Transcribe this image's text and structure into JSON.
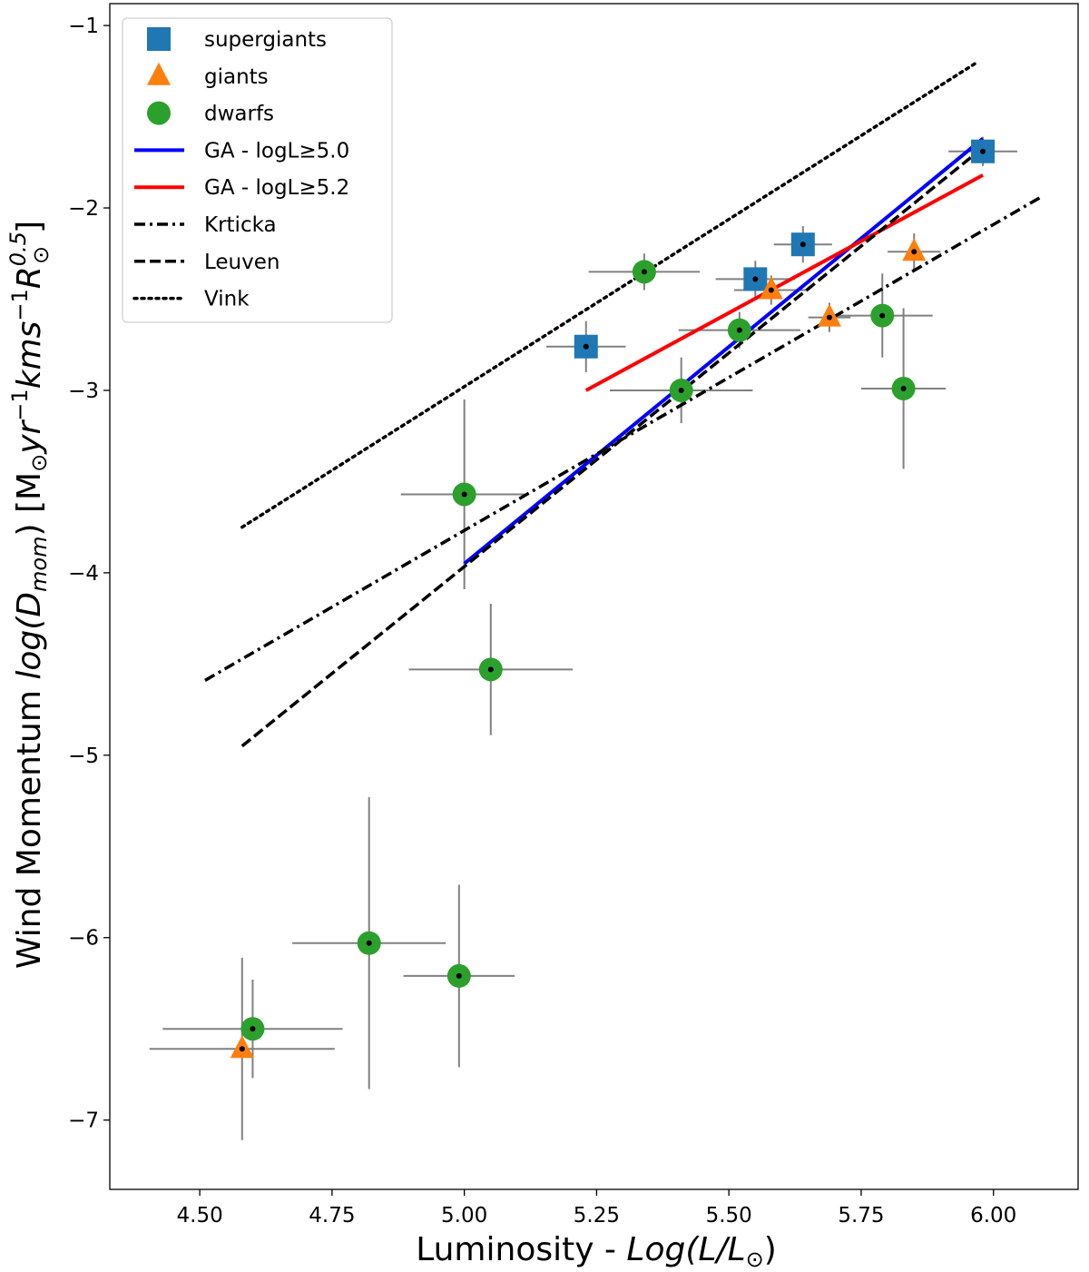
{
  "chart_data": {
    "type": "scatter",
    "xlabel": {
      "prefix": "Luminosity - ",
      "math_main": "Log(L/L",
      "math_sub": "⊙",
      "math_suffix": ")"
    },
    "ylabel": {
      "prefix": "Wind Momentum ",
      "math_main": "log(D",
      "math_sub": "mom",
      "math_close": ")",
      "unit_open": " [M",
      "unit_sun": "⊙",
      "unit_yr": "yr",
      "unit_exp1": "−1",
      "unit_kms": "kms",
      "unit_exp2": "−1",
      "unit_R": "R",
      "unit_R_sup": "0.5",
      "unit_R_sub": "⊙",
      "unit_close": "]"
    },
    "xlim": [
      4.33,
      6.16
    ],
    "ylim": [
      -7.38,
      -0.88
    ],
    "x_ticks": [
      4.5,
      4.75,
      5.0,
      5.25,
      5.5,
      5.75,
      6.0
    ],
    "x_tick_labels": [
      "4.50",
      "4.75",
      "5.00",
      "5.25",
      "5.50",
      "5.75",
      "6.00"
    ],
    "y_ticks": [
      -7,
      -6,
      -5,
      -4,
      -3,
      -2,
      -1
    ],
    "y_tick_labels": [
      "−7",
      "−6",
      "−5",
      "−4",
      "−3",
      "−2",
      "−1"
    ],
    "legend_position": "upper-left",
    "series": [
      {
        "name": "supergiants",
        "kind": "scatter",
        "marker": "square",
        "color": "#1f77b4",
        "points": [
          {
            "x": 5.23,
            "y": -2.76,
            "xerr": 0.075,
            "yerr": 0.14
          },
          {
            "x": 5.55,
            "y": -2.39,
            "xerr": 0.075,
            "yerr": 0.1
          },
          {
            "x": 5.64,
            "y": -2.2,
            "xerr": 0.055,
            "yerr": 0.1
          },
          {
            "x": 5.98,
            "y": -1.69,
            "xerr": 0.065,
            "yerr": 0.08
          }
        ]
      },
      {
        "name": "giants",
        "kind": "scatter",
        "marker": "triangle",
        "color": "#ff7f0e",
        "points": [
          {
            "x": 5.58,
            "y": -2.45,
            "xerr": 0.07,
            "yerr": 0.08
          },
          {
            "x": 5.69,
            "y": -2.6,
            "xerr": 0.04,
            "yerr": 0.08
          },
          {
            "x": 5.85,
            "y": -2.24,
            "xerr": 0.05,
            "yerr": 0.1
          },
          {
            "x": 4.58,
            "y": -6.61,
            "xerr": 0.175,
            "yerr": 0.5
          }
        ]
      },
      {
        "name": "dwarfs",
        "kind": "scatter",
        "marker": "circle",
        "color": "#2ca02c",
        "points": [
          {
            "x": 5.34,
            "y": -2.35,
            "xerr": 0.105,
            "yerr": 0.1
          },
          {
            "x": 5.52,
            "y": -2.67,
            "xerr": 0.115,
            "yerr": 0.1
          },
          {
            "x": 5.41,
            "y": -3.0,
            "xerr": 0.135,
            "yerr": 0.18
          },
          {
            "x": 5.79,
            "y": -2.59,
            "xerr": 0.095,
            "yerr": 0.23
          },
          {
            "x": 5.83,
            "y": -2.99,
            "xerr": 0.08,
            "yerr": 0.44
          },
          {
            "x": 5.0,
            "y": -3.57,
            "xerr": 0.12,
            "yerr": 0.52
          },
          {
            "x": 5.05,
            "y": -4.53,
            "xerr": 0.155,
            "yerr": 0.36
          },
          {
            "x": 4.82,
            "y": -6.03,
            "xerr": 0.145,
            "yerr": 0.8
          },
          {
            "x": 4.99,
            "y": -6.21,
            "xerr": 0.105,
            "yerr": 0.5
          },
          {
            "x": 4.6,
            "y": -6.5,
            "xerr": 0.17,
            "yerr": 0.27
          }
        ]
      },
      {
        "name": "GA - logL≥5.0",
        "kind": "line",
        "style": "solid",
        "color": "#0000ff",
        "x": [
          5.0,
          5.98
        ],
        "y": [
          -3.95,
          -1.62
        ]
      },
      {
        "name": "GA - logL≥5.2",
        "kind": "line",
        "style": "solid",
        "color": "#ff0000",
        "x": [
          5.23,
          5.98
        ],
        "y": [
          -3.0,
          -1.82
        ]
      },
      {
        "name": "Krticka",
        "kind": "line",
        "style": "dashdot",
        "color": "#000000",
        "x": [
          4.51,
          6.09
        ],
        "y": [
          -4.59,
          -1.94
        ]
      },
      {
        "name": "Leuven",
        "kind": "line",
        "style": "dashed",
        "color": "#000000",
        "x": [
          4.58,
          5.98
        ],
        "y": [
          -4.95,
          -1.67
        ]
      },
      {
        "name": "Vink",
        "kind": "line",
        "style": "dotted",
        "color": "#000000",
        "x": [
          4.58,
          5.97
        ],
        "y": [
          -3.75,
          -1.2
        ]
      }
    ]
  }
}
